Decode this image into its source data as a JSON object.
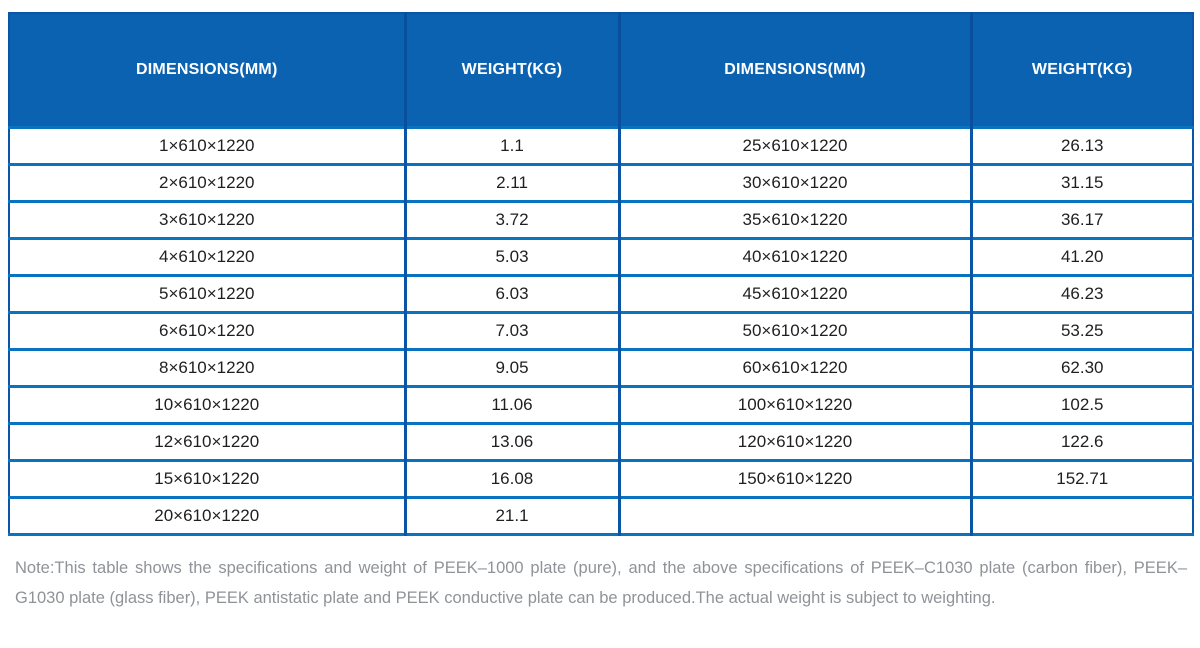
{
  "colors": {
    "header_bg": "#0a62b0",
    "header_divider": "#084f9e",
    "row_border_horizontal": "#0a73c1",
    "row_border_vertical": "#0a55a5",
    "outer_border": "#0a55a8",
    "header_text": "#ffffff",
    "body_text": "#1f1f1f",
    "note_text": "#8f9397"
  },
  "table": {
    "headers": [
      "DIMENSIONS(MM)",
      "WEIGHT(KG)",
      "DIMENSIONS(MM)",
      "WEIGHT(KG)"
    ],
    "rows": [
      [
        "1×610×1220",
        "1.1",
        "25×610×1220",
        "26.13"
      ],
      [
        "2×610×1220",
        "2.11",
        "30×610×1220",
        "31.15"
      ],
      [
        "3×610×1220",
        "3.72",
        "35×610×1220",
        "36.17"
      ],
      [
        "4×610×1220",
        "5.03",
        "40×610×1220",
        "41.20"
      ],
      [
        "5×610×1220",
        "6.03",
        "45×610×1220",
        "46.23"
      ],
      [
        "6×610×1220",
        "7.03",
        "50×610×1220",
        "53.25"
      ],
      [
        "8×610×1220",
        "9.05",
        "60×610×1220",
        "62.30"
      ],
      [
        "10×610×1220",
        "11.06",
        "100×610×1220",
        "102.5"
      ],
      [
        "12×610×1220",
        "13.06",
        "120×610×1220",
        "122.6"
      ],
      [
        "15×610×1220",
        "16.08",
        "150×610×1220",
        "152.71"
      ],
      [
        "20×610×1220",
        "21.1",
        "",
        ""
      ]
    ]
  },
  "note": "Note:This table shows the specifications and weight of PEEK–1000 plate (pure), and the above specifications of PEEK–C1030 plate (carbon fiber), PEEK–G1030 plate (glass fiber), PEEK antistatic plate and PEEK conductive plate can be produced.The actual weight is subject to weighting."
}
